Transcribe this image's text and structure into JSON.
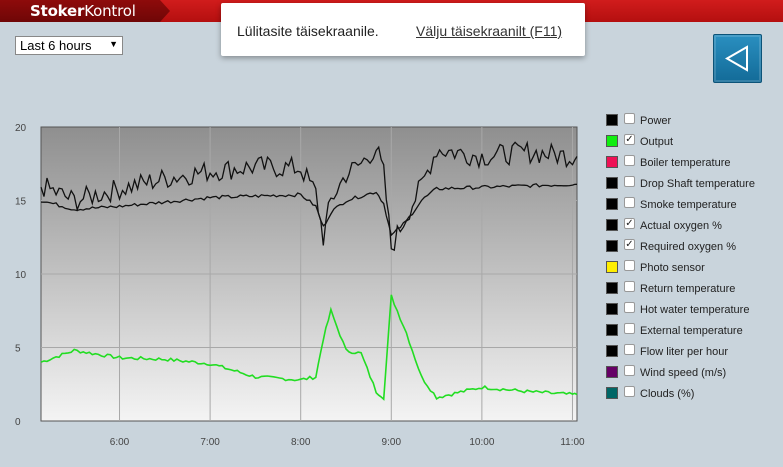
{
  "app": {
    "logo_bold": "Stoker",
    "logo_light": "Kontrol"
  },
  "notice": {
    "message": "Lülitasite täisekraanile.",
    "exit_link": "Välju täisekraanilt (F11)"
  },
  "range_select": {
    "value": "Last 6 hours"
  },
  "back_button": {
    "icon": "play-back-icon"
  },
  "chart_data": {
    "type": "line",
    "ylim": [
      0,
      20
    ],
    "yticks": [
      "20",
      "15",
      "10",
      "5",
      "0"
    ],
    "xticks": [
      "6:00",
      "7:00",
      "8:00",
      "9:00",
      "10:00",
      "11:00"
    ],
    "x": [
      "5:08",
      "5:30",
      "6:00",
      "6:30",
      "7:00",
      "7:30",
      "8:00",
      "8:10",
      "8:15",
      "8:20",
      "8:30",
      "8:40",
      "8:50",
      "8:55",
      "9:00",
      "9:10",
      "9:20",
      "9:30",
      "10:00",
      "10:30",
      "11:00",
      "11:03"
    ],
    "series": [
      {
        "name": "Output",
        "color": "#22dd22",
        "values": [
          4.0,
          4.8,
          4.3,
          4.2,
          3.9,
          3.0,
          2.8,
          3.0,
          5.6,
          7.5,
          4.8,
          4.6,
          2.0,
          1.6,
          8.5,
          6.0,
          3.0,
          1.6,
          2.3,
          2.0,
          1.8,
          1.8
        ]
      },
      {
        "name": "Actual oxygen %",
        "color": "#111111",
        "values": [
          16.0,
          15.0,
          15.8,
          16.5,
          17.0,
          17.3,
          17.2,
          15.5,
          12.5,
          15.0,
          16.8,
          17.5,
          18.6,
          16.8,
          11.8,
          14.0,
          16.0,
          18.5,
          18.0,
          18.3,
          18.0,
          18.0
        ]
      },
      {
        "name": "Required oxygen %",
        "color": "#111111",
        "values": [
          15.0,
          14.4,
          14.6,
          14.9,
          15.2,
          15.3,
          15.4,
          14.6,
          13.2,
          14.2,
          15.0,
          15.3,
          15.6,
          14.8,
          12.6,
          13.6,
          15.0,
          15.8,
          15.9,
          16.0,
          16.1,
          16.1
        ]
      }
    ]
  },
  "legend": [
    {
      "label": "Power",
      "color": "#000000",
      "checked": false
    },
    {
      "label": "Output",
      "color": "#11ee11",
      "checked": true
    },
    {
      "label": "Boiler temperature",
      "color": "#ee1155",
      "checked": false
    },
    {
      "label": "Drop Shaft temperature",
      "color": "#000000",
      "checked": false
    },
    {
      "label": "Smoke temperature",
      "color": "#000000",
      "checked": false
    },
    {
      "label": "Actual oxygen %",
      "color": "#000000",
      "checked": true
    },
    {
      "label": "Required oxygen %",
      "color": "#000000",
      "checked": true
    },
    {
      "label": "Photo sensor",
      "color": "#ffee00",
      "checked": false
    },
    {
      "label": "Return temperature",
      "color": "#000000",
      "checked": false
    },
    {
      "label": "Hot water temperature",
      "color": "#000000",
      "checked": false
    },
    {
      "label": "External temperature",
      "color": "#000000",
      "checked": false
    },
    {
      "label": "Flow liter per hour",
      "color": "#000000",
      "checked": false
    },
    {
      "label": "Wind speed (m/s)",
      "color": "#660066",
      "checked": false
    },
    {
      "label": "Clouds (%)",
      "color": "#006666",
      "checked": false
    }
  ]
}
